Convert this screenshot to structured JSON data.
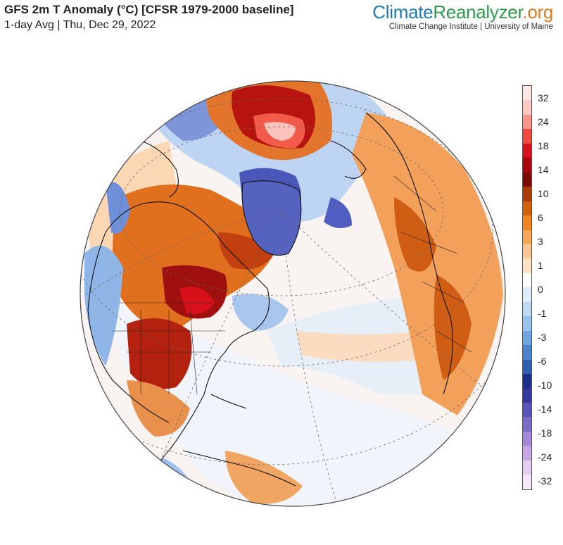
{
  "header": {
    "title": "GFS 2m T Anomaly (°C) [CFSR 1979-2000 baseline]",
    "subtitle": "1-day Avg | Thu, Dec 29, 2022"
  },
  "brand": {
    "name_part1": "Climate",
    "name_part2": "Reanalyzer",
    "name_part3": ".org",
    "tagline": "Climate Change Institute | University of Maine",
    "colors": {
      "climate": "#1f7ab6",
      "reanalyzer": "#2e9b4a",
      "org": "#e07a1f"
    }
  },
  "legend": {
    "labels": [
      "32",
      "24",
      "18",
      "14",
      "10",
      "6",
      "3",
      "1",
      "0",
      "-1",
      "-3",
      "-6",
      "-10",
      "-14",
      "-18",
      "-24",
      "-32"
    ],
    "colors": [
      "#fde8e6",
      "#fcc9c2",
      "#f7958c",
      "#ef4a3c",
      "#d8101a",
      "#a8070d",
      "#7c0a06",
      "#a93c08",
      "#d2600d",
      "#ef8420",
      "#f7a75a",
      "#fbc694",
      "#fde2c8",
      "#ffffff",
      "#deebf8",
      "#bfd9f3",
      "#97c3ec",
      "#6fa5df",
      "#4a83cc",
      "#2c5eb2",
      "#1c2f8a",
      "#3438a0",
      "#5a54b8",
      "#7b6cc8",
      "#a489d8",
      "#c5a8e4",
      "#e3cdf0",
      "#f6e8f8"
    ]
  },
  "map": {
    "projection": "orthographic",
    "center": "North Atlantic / North America",
    "features": [
      "continent-outlines",
      "country-borders",
      "state-borders",
      "graticule"
    ]
  }
}
